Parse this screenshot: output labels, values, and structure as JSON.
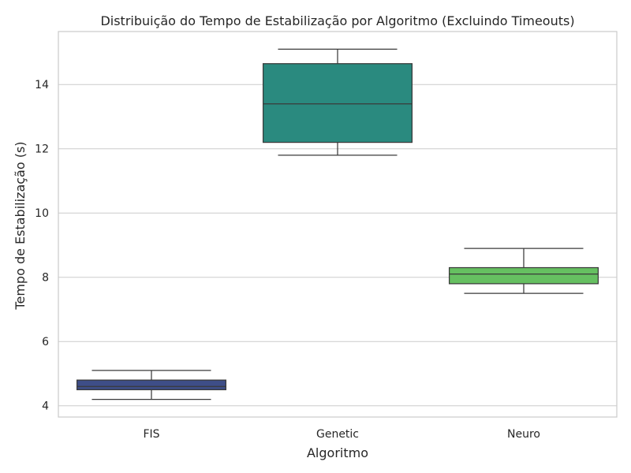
{
  "chart_data": {
    "type": "box",
    "title": "Distribuição do Tempo de Estabilização por Algoritmo (Excluindo Timeouts)",
    "xlabel": "Algoritmo",
    "ylabel": "Tempo de Estabilização (s)",
    "ylim": [
      3.65,
      15.65
    ],
    "yticks": [
      4,
      6,
      8,
      10,
      12,
      14
    ],
    "grid": "horizontal",
    "categories": [
      "FIS",
      "Genetic",
      "Neuro"
    ],
    "series": [
      {
        "category": "FIS",
        "whisker_low": 4.2,
        "q1": 4.5,
        "median": 4.6,
        "q3": 4.8,
        "whisker_high": 5.1,
        "color": "#3e4e88"
      },
      {
        "category": "Genetic",
        "whisker_low": 11.8,
        "q1": 12.2,
        "median": 13.4,
        "q3": 14.65,
        "whisker_high": 15.1,
        "color": "#2a8a7f"
      },
      {
        "category": "Neuro",
        "whisker_low": 7.5,
        "q1": 7.8,
        "median": 8.1,
        "q3": 8.3,
        "whisker_high": 8.9,
        "color": "#66c061"
      }
    ]
  }
}
